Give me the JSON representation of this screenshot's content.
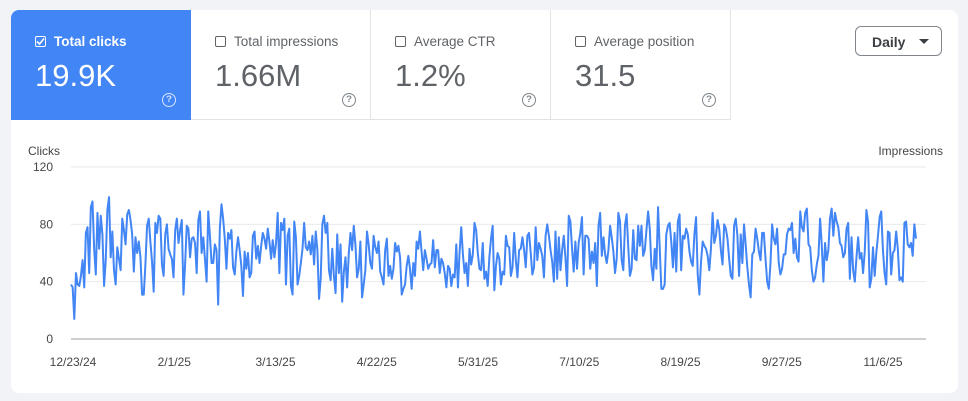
{
  "metrics": [
    {
      "label": "Total clicks",
      "value": "19.9K",
      "selected": true,
      "help": "?"
    },
    {
      "label": "Total impressions",
      "value": "1.66M",
      "selected": false,
      "help": "?"
    },
    {
      "label": "Average CTR",
      "value": "1.2%",
      "selected": false,
      "help": "?"
    },
    {
      "label": "Average position",
      "value": "31.5",
      "selected": false,
      "help": "?"
    }
  ],
  "granularity": {
    "label": "Daily"
  },
  "colors": {
    "accent": "#4285f4",
    "line": "#4285f4",
    "grid": "#e8eaed"
  },
  "chart_data": {
    "type": "line",
    "title": "",
    "ylabel": "Clicks",
    "ylabel_right": "Impressions",
    "ylim": [
      0,
      120
    ],
    "y_ticks": [
      0,
      40,
      80,
      120
    ],
    "x_tick_labels": [
      "12/23/24",
      "2/1/25",
      "3/13/25",
      "4/22/25",
      "5/31/25",
      "7/10/25",
      "8/19/25",
      "9/27/25",
      "11/6/25"
    ],
    "series": [
      {
        "name": "Clicks",
        "values": [
          38,
          36,
          14,
          46,
          38,
          37,
          44,
          55,
          36,
          74,
          78,
          46,
          92,
          96,
          63,
          45,
          88,
          63,
          86,
          73,
          37,
          55,
          90,
          99,
          57,
          75,
          48,
          38,
          64,
          56,
          48,
          84,
          76,
          66,
          87,
          90,
          83,
          73,
          47,
          71,
          60,
          68,
          57,
          31,
          31,
          52,
          79,
          84,
          68,
          54,
          33,
          81,
          74,
          86,
          84,
          52,
          44,
          73,
          80,
          63,
          59,
          56,
          43,
          76,
          84,
          67,
          76,
          83,
          31,
          52,
          79,
          77,
          57,
          70,
          71,
          67,
          46,
          83,
          89,
          60,
          71,
          56,
          40,
          89,
          72,
          53,
          53,
          66,
          62,
          24,
          77,
          94,
          84,
          70,
          49,
          74,
          70,
          76,
          50,
          45,
          61,
          71,
          62,
          51,
          30,
          61,
          49,
          60,
          43,
          46,
          72,
          75,
          56,
          65,
          53,
          65,
          74,
          70,
          63,
          77,
          68,
          56,
          69,
          57,
          67,
          88,
          46,
          81,
          76,
          84,
          38,
          72,
          77,
          37,
          31,
          82,
          71,
          38,
          44,
          53,
          63,
          81,
          64,
          62,
          68,
          59,
          72,
          52,
          75,
          62,
          28,
          42,
          80,
          86,
          74,
          81,
          48,
          41,
          63,
          44,
          32,
          73,
          46,
          66,
          26,
          47,
          57,
          36,
          60,
          74,
          62,
          79,
          66,
          43,
          49,
          68,
          29,
          38,
          48,
          75,
          66,
          53,
          49,
          72,
          64,
          60,
          68,
          47,
          43,
          38,
          62,
          70,
          44,
          51,
          42,
          49,
          67,
          61,
          65,
          57,
          31,
          35,
          38,
          51,
          58,
          49,
          35,
          53,
          44,
          68,
          63,
          75,
          61,
          48,
          62,
          56,
          49,
          52,
          53,
          69,
          50,
          62,
          62,
          46,
          56,
          53,
          46,
          36,
          51,
          49,
          37,
          45,
          43,
          66,
          36,
          61,
          78,
          59,
          46,
          53,
          37,
          63,
          52,
          59,
          81,
          76,
          60,
          49,
          48,
          67,
          42,
          47,
          37,
          57,
          70,
          79,
          34,
          51,
          60,
          56,
          38,
          47,
          45,
          72,
          65,
          64,
          44,
          50,
          74,
          55,
          43,
          62,
          63,
          71,
          62,
          50,
          72,
          74,
          60,
          45,
          50,
          78,
          55,
          67,
          63,
          58,
          43,
          72,
          80,
          72,
          62,
          54,
          40,
          75,
          42,
          71,
          48,
          62,
          72,
          57,
          37,
          86,
          82,
          63,
          47,
          68,
          49,
          67,
          74,
          85,
          45,
          72,
          72,
          70,
          49,
          61,
          53,
          67,
          37,
          79,
          88,
          58,
          71,
          59,
          53,
          62,
          79,
          71,
          61,
          46,
          56,
          88,
          82,
          55,
          48,
          79,
          87,
          64,
          44,
          49,
          76,
          56,
          55,
          79,
          65,
          79,
          58,
          62,
          76,
          89,
          77,
          51,
          41,
          63,
          49,
          92,
          64,
          35,
          35,
          38,
          73,
          79,
          81,
          68,
          50,
          74,
          47,
          82,
          87,
          48,
          72,
          70,
          77,
          73,
          61,
          54,
          51,
          73,
          85,
          45,
          31,
          54,
          68,
          65,
          63,
          58,
          48,
          63,
          88,
          67,
          72,
          83,
          77,
          62,
          52,
          80,
          77,
          70,
          56,
          44,
          42,
          79,
          84,
          72,
          44,
          73,
          53,
          80,
          66,
          50,
          38,
          29,
          59,
          61,
          77,
          70,
          61,
          55,
          74,
          74,
          56,
          40,
          35,
          53,
          80,
          70,
          66,
          77,
          53,
          45,
          49,
          59,
          59,
          73,
          77,
          76,
          81,
          60,
          70,
          57,
          54,
          89,
          78,
          75,
          88,
          91,
          66,
          64,
          48,
          40,
          43,
          52,
          58,
          84,
          66,
          40,
          67,
          55,
          62,
          84,
          91,
          72,
          88,
          82,
          78,
          67,
          65,
          57,
          60,
          77,
          81,
          42,
          71,
          48,
          40,
          57,
          71,
          56,
          60,
          46,
          61,
          90,
          82,
          36,
          42,
          64,
          44,
          60,
          72,
          85,
          89,
          62,
          46,
          38,
          75,
          74,
          45,
          60,
          62,
          75,
          63,
          41,
          43,
          40,
          81,
          82,
          66,
          64,
          67,
          58,
          80,
          70
        ]
      }
    ]
  }
}
